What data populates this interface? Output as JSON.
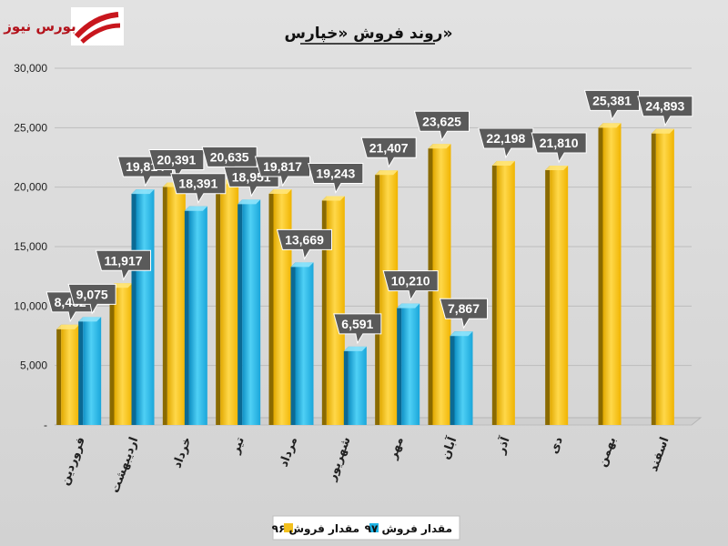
{
  "logo": {
    "text": "بورس نیوز",
    "color": "#c8161d"
  },
  "chart_data": {
    "type": "bar",
    "title": "روند فروش «خپارس»",
    "categories": [
      "فروردین",
      "اردیبهشت",
      "خرداد",
      "تیر",
      "مرداد",
      "شهریور",
      "مهر",
      "آبان",
      "آذر",
      "دی",
      "بهمن",
      "اسفند"
    ],
    "series": [
      {
        "name": "مقدار فروش ۹۶",
        "color": "#f2c01e",
        "values": [
          8432,
          11917,
          20391,
          20635,
          19817,
          19243,
          21407,
          23625,
          22198,
          21810,
          25381,
          24893
        ]
      },
      {
        "name": "مقدار فروش ۹۷",
        "color": "#1fb4e6",
        "values": [
          9075,
          19814,
          18391,
          18951,
          13669,
          6591,
          10210,
          7867,
          null,
          null,
          null,
          null
        ]
      }
    ],
    "y_ticks": [
      "-",
      "5,000",
      "10,000",
      "15,000",
      "20,000",
      "25,000",
      "30,000"
    ],
    "ylim": [
      0,
      30000
    ],
    "grid": true,
    "legend_position": "bottom-center"
  }
}
